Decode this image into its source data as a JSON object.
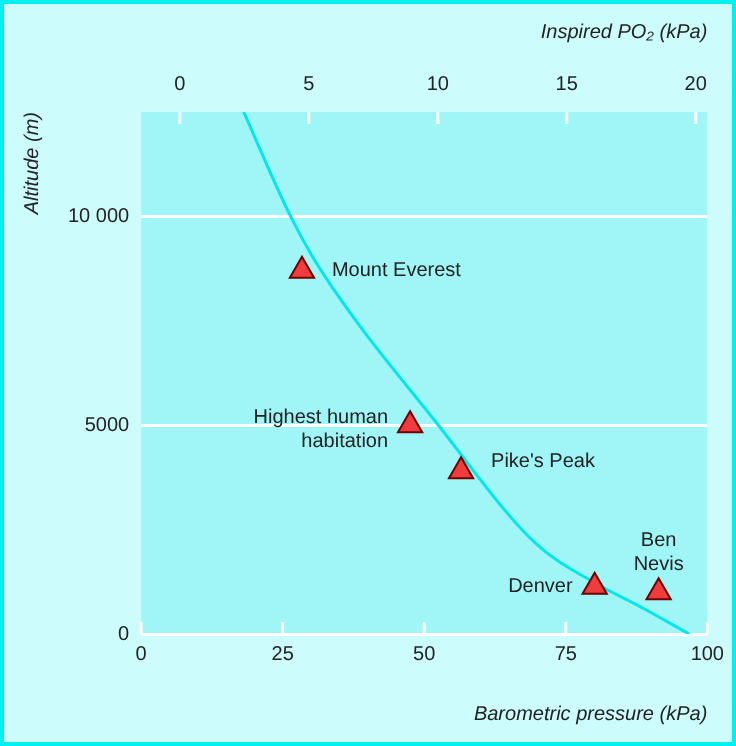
{
  "chart_data": {
    "type": "scatter",
    "xlabel": "Barometric pressure (kPa)",
    "ylabel": "Altitude (m)",
    "x2label": "Inspired PO₂ (kPa)",
    "xlim": [
      0,
      100
    ],
    "xticks": [
      0,
      25,
      50,
      75,
      100
    ],
    "x2lim": [
      -1.5,
      20.45
    ],
    "x2ticks": [
      0,
      5,
      10,
      15,
      20
    ],
    "ylim": [
      0,
      12500
    ],
    "yticks": [
      0,
      5000,
      {
        "value": 10000,
        "label": "10 000"
      }
    ],
    "grid": "y",
    "legend": false,
    "series": [
      {
        "type": "line",
        "marker": "none",
        "color": "#00e8e8",
        "x": [
          18.1,
          26.4,
          31.8,
          52.5,
          69.6,
          79.8,
          88.9,
          96.8
        ],
        "values": [
          12500,
          10000,
          8700,
          5000,
          2180,
          1250,
          600,
          0
        ]
      },
      {
        "marker": "triangle",
        "color": "#f03c3c",
        "x": [
          28.4,
          47.5,
          56.5,
          80.1,
          91.4
        ],
        "values": [
          8700,
          5000,
          3900,
          1130,
          1000
        ]
      }
    ],
    "annotations": [
      {
        "text": "Mount Everest",
        "x": 28.4,
        "y": 8700
      },
      {
        "text": "Highest human habitation",
        "x": 47.5,
        "y": 5000
      },
      {
        "text": "Pike's Peak",
        "x": 56.5,
        "y": 3900
      },
      {
        "text": "Denver",
        "x": 80.1,
        "y": 1130
      },
      {
        "text": "Ben Nevis",
        "x": 91.4,
        "y": 1000
      }
    ]
  }
}
